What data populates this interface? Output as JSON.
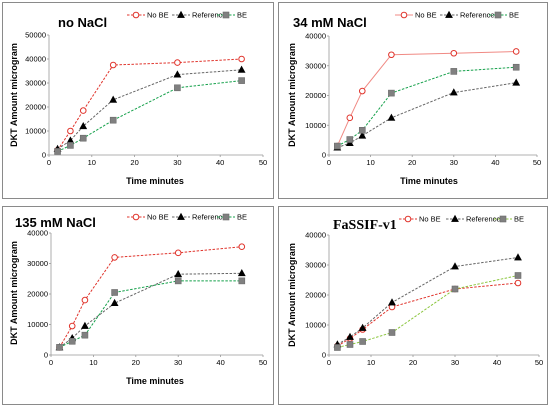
{
  "colors": {
    "no_be": "#e0342c",
    "no_be_marker": "#e0342c",
    "reference": "#666666",
    "reference_marker": "#000000",
    "be": "#14a04a",
    "be_marker": "#808080",
    "frame": "#8a8a8a",
    "axis": "#999999"
  },
  "chart_data": [
    {
      "type": "line",
      "title": "no NaCl",
      "xlabel": "Time minutes",
      "ylabel": "DKT Amount  microgram",
      "xlim": [
        0,
        50
      ],
      "ylim": [
        0,
        50000
      ],
      "xticks": [
        "0",
        "10",
        "20",
        "30",
        "40",
        "50"
      ],
      "yticks": [
        "0",
        "10000",
        "20000",
        "30000",
        "40000",
        "50000"
      ],
      "legend": "top-right",
      "x": [
        2,
        5,
        8,
        15,
        30,
        45
      ],
      "series": [
        {
          "name": "No BE",
          "style": "no_be",
          "values": [
            2000,
            10000,
            18500,
            37500,
            38500,
            40000
          ]
        },
        {
          "name": "Reference",
          "style": "reference",
          "values": [
            2500,
            6000,
            12000,
            23000,
            33500,
            35500
          ]
        },
        {
          "name": "BE",
          "style": "be",
          "values": [
            1500,
            4000,
            7000,
            14500,
            28000,
            31000
          ]
        }
      ]
    },
    {
      "type": "line",
      "title": "34 mM NaCl",
      "xlabel": "Time minutes",
      "ylabel": "DKT Amount  microgram",
      "xlim": [
        0,
        50
      ],
      "ylim": [
        0,
        40000
      ],
      "xticks": [
        "0",
        "10",
        "20",
        "30",
        "40",
        "50"
      ],
      "yticks": [
        "0",
        "10000",
        "20000",
        "30000",
        "40000"
      ],
      "legend": "top-right",
      "x": [
        2,
        5,
        8,
        15,
        30,
        45
      ],
      "series": [
        {
          "name": "No BE",
          "style": "no_be_solid",
          "values": [
            3000,
            12500,
            21500,
            33700,
            34200,
            34800
          ]
        },
        {
          "name": "Reference",
          "style": "reference",
          "values": [
            2500,
            4000,
            6500,
            12500,
            21000,
            24300
          ]
        },
        {
          "name": "BE",
          "style": "be",
          "values": [
            3000,
            5200,
            8300,
            20800,
            28100,
            29500
          ]
        }
      ]
    },
    {
      "type": "line",
      "title": "135 mM NaCl",
      "xlabel": "Time minutes",
      "ylabel": "DKT Amount  microgram",
      "xlim": [
        0,
        50
      ],
      "ylim": [
        0,
        40000
      ],
      "xticks": [
        "0",
        "10",
        "20",
        "30",
        "40",
        "50"
      ],
      "yticks": [
        "0",
        "10000",
        "20000",
        "30000",
        "40000"
      ],
      "legend": "top-right",
      "x": [
        2,
        5,
        8,
        15,
        30,
        45
      ],
      "series": [
        {
          "name": "No BE",
          "style": "no_be",
          "values": [
            2500,
            9500,
            18000,
            32000,
            33500,
            35500
          ]
        },
        {
          "name": "Reference",
          "style": "reference",
          "values": [
            2500,
            5500,
            9500,
            17000,
            26500,
            26800
          ]
        },
        {
          "name": "BE",
          "style": "be",
          "values": [
            2500,
            4500,
            6500,
            20500,
            24300,
            24300
          ]
        }
      ]
    },
    {
      "type": "line",
      "title": "FaSSIF-v1",
      "xlabel": "",
      "ylabel": "DKT Amount  microgram",
      "xlim": [
        0,
        50
      ],
      "ylim": [
        0,
        40000
      ],
      "xticks": [
        "0",
        "10",
        "20",
        "30",
        "40",
        "50"
      ],
      "yticks": [
        "0",
        "10000",
        "20000",
        "30000",
        "40000"
      ],
      "legend": "top-right",
      "x": [
        2,
        5,
        8,
        15,
        30,
        45
      ],
      "series": [
        {
          "name": "No BE",
          "style": "no_be",
          "values": [
            3000,
            5500,
            8500,
            16000,
            22000,
            24000
          ]
        },
        {
          "name": "Reference",
          "style": "reference",
          "values": [
            3500,
            6000,
            9000,
            17500,
            29500,
            32500
          ]
        },
        {
          "name": "BE",
          "style": "be_light",
          "values": [
            2500,
            3500,
            4500,
            7500,
            22000,
            26500
          ]
        }
      ]
    }
  ]
}
